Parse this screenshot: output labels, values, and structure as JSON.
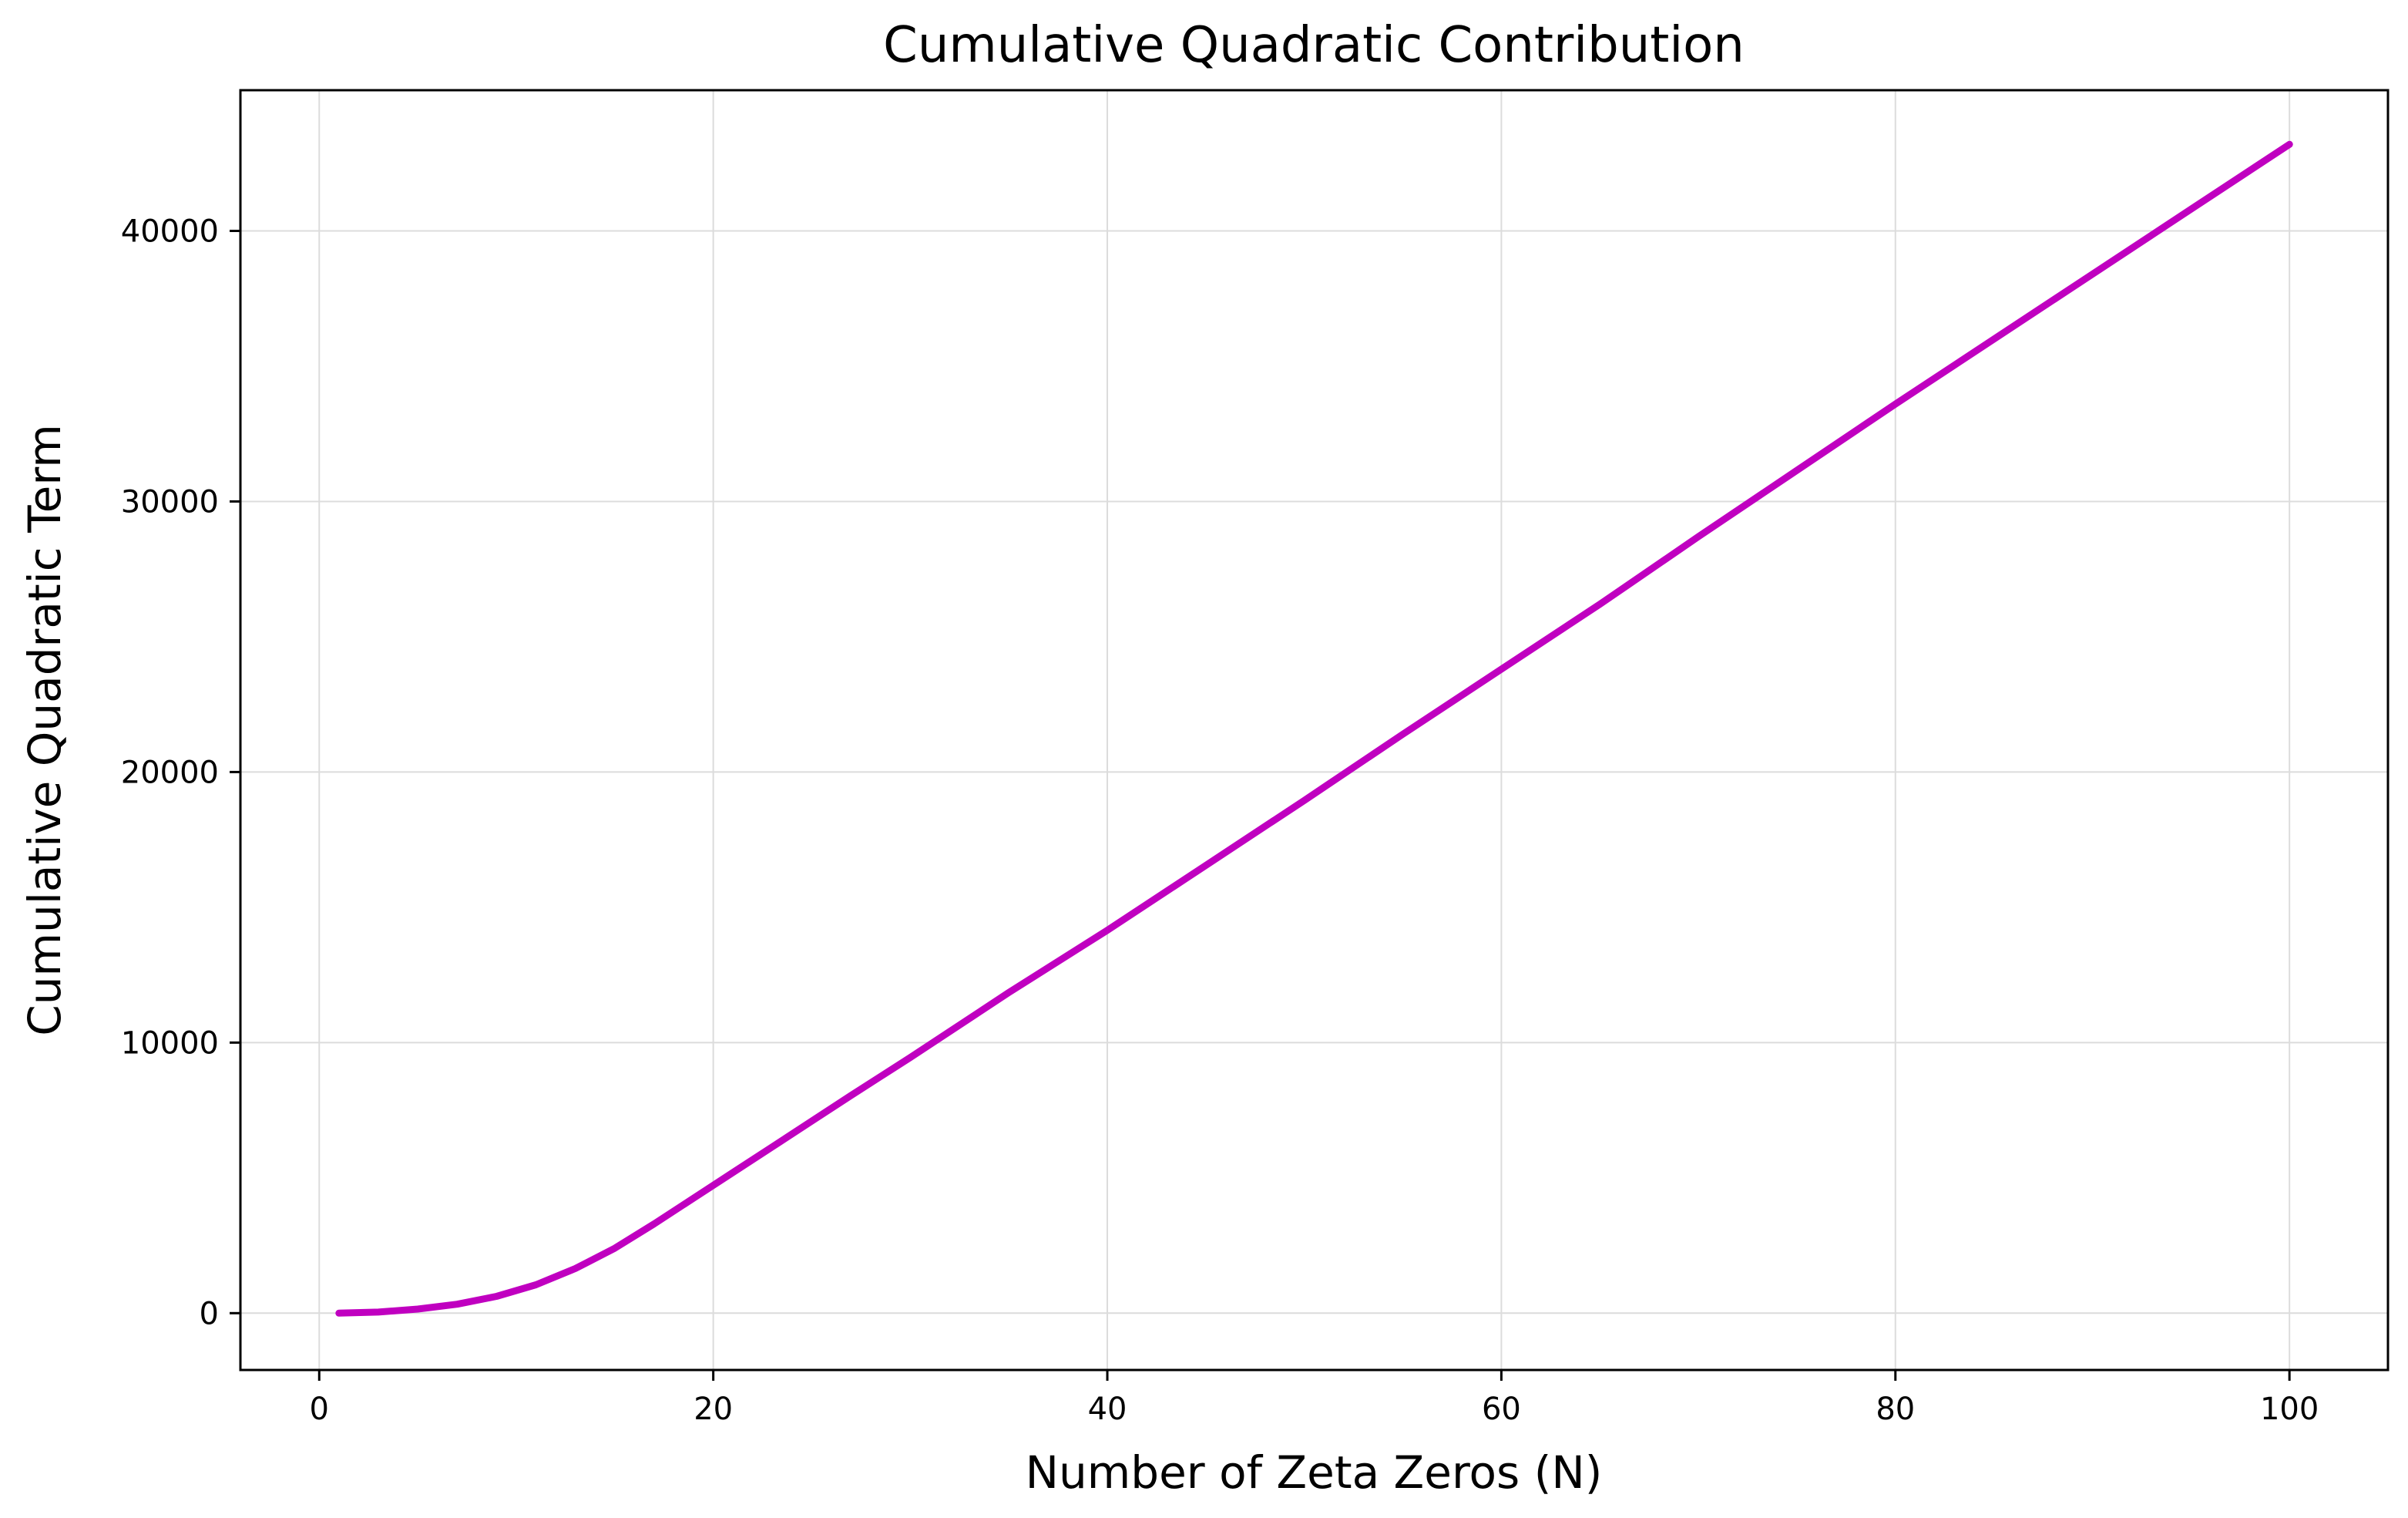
{
  "chart_data": {
    "type": "line",
    "title": "Cumulative Quadratic Contribution",
    "xlabel": "Number of Zeta Zeros (N)",
    "ylabel": "Cumulative Quadratic Term",
    "xlim": [
      -4,
      105
    ],
    "ylim": [
      -2100,
      45200
    ],
    "x_ticks": [
      0,
      20,
      40,
      60,
      80,
      100
    ],
    "y_ticks": [
      0,
      10000,
      20000,
      30000,
      40000
    ],
    "x_tick_labels": [
      "0",
      "20",
      "40",
      "60",
      "80",
      "100"
    ],
    "y_tick_labels": [
      "0",
      "10000",
      "20000",
      "30000",
      "40000"
    ],
    "grid": true,
    "series": [
      {
        "color": "#c000c0",
        "points": [
          [
            1,
            0
          ],
          [
            3,
            40
          ],
          [
            5,
            150
          ],
          [
            7,
            330
          ],
          [
            9,
            620
          ],
          [
            11,
            1050
          ],
          [
            13,
            1650
          ],
          [
            15,
            2400
          ],
          [
            17,
            3300
          ],
          [
            19,
            4250
          ],
          [
            21,
            5200
          ],
          [
            23,
            6150
          ],
          [
            25,
            7100
          ],
          [
            27,
            8050
          ],
          [
            30,
            9450
          ],
          [
            35,
            11850
          ],
          [
            40,
            14150
          ],
          [
            45,
            16550
          ],
          [
            50,
            18950
          ],
          [
            55,
            21400
          ],
          [
            60,
            23800
          ],
          [
            65,
            26200
          ],
          [
            70,
            28700
          ],
          [
            75,
            31150
          ],
          [
            80,
            33600
          ],
          [
            85,
            36000
          ],
          [
            90,
            38400
          ],
          [
            95,
            40800
          ],
          [
            100,
            43200
          ]
        ]
      }
    ]
  }
}
